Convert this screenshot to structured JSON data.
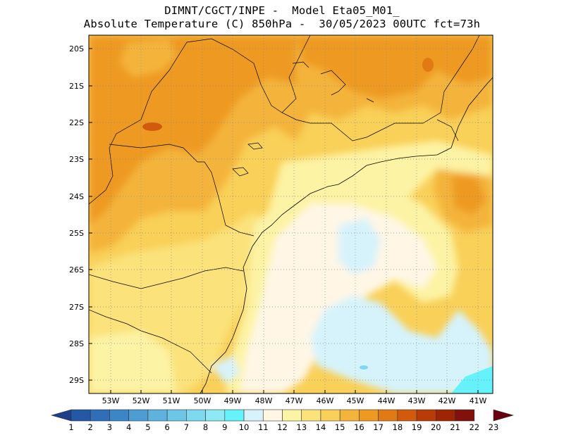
{
  "header": {
    "line1": "DIMNT/CGCT/INPE -  Model Eta05_M01_",
    "line2": "Absolute Temperature (C) 850hPa -  30/05/2023 00UTC fct=73h"
  },
  "map": {
    "lat_labels": [
      "20S",
      "21S",
      "22S",
      "23S",
      "24S",
      "25S",
      "26S",
      "27S",
      "28S",
      "29S"
    ],
    "lon_labels": [
      "53W",
      "52W",
      "51W",
      "50W",
      "49W",
      "48W",
      "47W",
      "46W",
      "45W",
      "44W",
      "43W",
      "42W",
      "41W"
    ],
    "field": "temperature 850hPa",
    "units": "C"
  },
  "colorbar": {
    "labels": [
      "1",
      "2",
      "3",
      "4",
      "5",
      "6",
      "7",
      "8",
      "9",
      "10",
      "11",
      "12",
      "13",
      "14",
      "15",
      "16",
      "17",
      "18",
      "19",
      "20",
      "21",
      "22",
      "23"
    ],
    "colors": [
      "#1d3f8c",
      "#2457a6",
      "#2f6fb8",
      "#3a86c6",
      "#4b9dd3",
      "#5db3dd",
      "#6cc7e6",
      "#7dd9ee",
      "#8de9f4",
      "#66f2fb",
      "#d6f3fb",
      "#fff6e6",
      "#fdf3a4",
      "#fbe27a",
      "#f9d058",
      "#f4b43a",
      "#ee9a20",
      "#e27a14",
      "#d25a0c",
      "#b83c08",
      "#9e2404",
      "#82100c",
      "#680014"
    ]
  }
}
